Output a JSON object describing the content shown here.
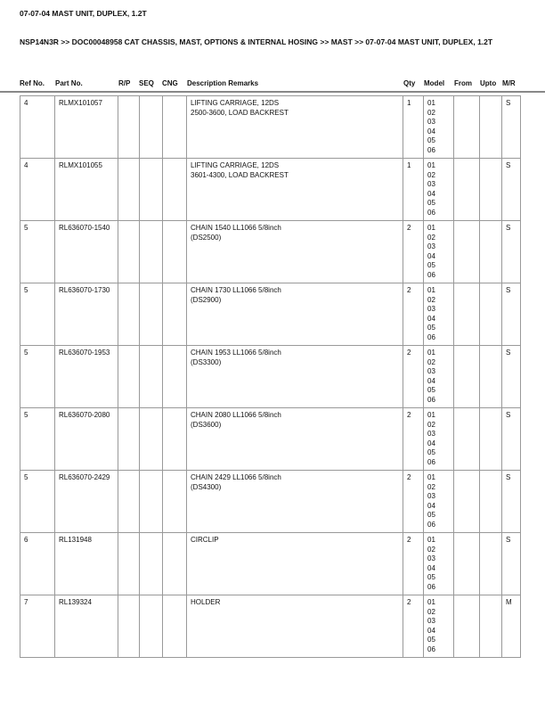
{
  "title": "07-07-04 MAST UNIT, DUPLEX, 1.2T",
  "breadcrumb": "NSP14N3R >> DOC00048958 CAT CHASSIS, MAST, OPTIONS & INTERNAL HOSING >> MAST >> 07-07-04 MAST UNIT, DUPLEX, 1.2T",
  "columns": [
    "Ref No.",
    "Part No.",
    "R/P",
    "SEQ",
    "CNG",
    "Description Remarks",
    "Qty",
    "Model",
    "From",
    "Upto",
    "M/R"
  ],
  "rows": [
    {
      "ref": "4",
      "part": "RLMX101057",
      "rp": "",
      "seq": "",
      "cng": "",
      "desc": [
        "LIFTING CARRIAGE, 12DS",
        "2500-3600, LOAD BACKREST"
      ],
      "qty": "1",
      "models": [
        "01",
        "02",
        "03",
        "04",
        "05",
        "06"
      ],
      "from": "",
      "upto": "",
      "mr": "S"
    },
    {
      "ref": "4",
      "part": "RLMX101055",
      "rp": "",
      "seq": "",
      "cng": "",
      "desc": [
        "LIFTING CARRIAGE, 12DS",
        "3601-4300, LOAD BACKREST"
      ],
      "qty": "1",
      "models": [
        "01",
        "02",
        "03",
        "04",
        "05",
        "06"
      ],
      "from": "",
      "upto": "",
      "mr": "S"
    },
    {
      "ref": "5",
      "part": "RL636070-1540",
      "rp": "",
      "seq": "",
      "cng": "",
      "desc": [
        "CHAIN 1540 LL1066 5/8inch",
        "(DS2500)"
      ],
      "qty": "2",
      "models": [
        "01",
        "02",
        "03",
        "04",
        "05",
        "06"
      ],
      "from": "",
      "upto": "",
      "mr": "S"
    },
    {
      "ref": "5",
      "part": "RL636070-1730",
      "rp": "",
      "seq": "",
      "cng": "",
      "desc": [
        "CHAIN 1730 LL1066 5/8inch",
        "(DS2900)"
      ],
      "qty": "2",
      "models": [
        "01",
        "02",
        "03",
        "04",
        "05",
        "06"
      ],
      "from": "",
      "upto": "",
      "mr": "S"
    },
    {
      "ref": "5",
      "part": "RL636070-1953",
      "rp": "",
      "seq": "",
      "cng": "",
      "desc": [
        "CHAIN 1953 LL1066 5/8inch",
        "(DS3300)"
      ],
      "qty": "2",
      "models": [
        "01",
        "02",
        "03",
        "04",
        "05",
        "06"
      ],
      "from": "",
      "upto": "",
      "mr": "S"
    },
    {
      "ref": "5",
      "part": "RL636070-2080",
      "rp": "",
      "seq": "",
      "cng": "",
      "desc": [
        "CHAIN 2080 LL1066 5/8inch",
        "(DS3600)"
      ],
      "qty": "2",
      "models": [
        "01",
        "02",
        "03",
        "04",
        "05",
        "06"
      ],
      "from": "",
      "upto": "",
      "mr": "S"
    },
    {
      "ref": "5",
      "part": "RL636070-2429",
      "rp": "",
      "seq": "",
      "cng": "",
      "desc": [
        "CHAIN 2429 LL1066 5/8inch",
        "(DS4300)"
      ],
      "qty": "2",
      "models": [
        "01",
        "02",
        "03",
        "04",
        "05",
        "06"
      ],
      "from": "",
      "upto": "",
      "mr": "S"
    },
    {
      "ref": "6",
      "part": "RL131948",
      "rp": "",
      "seq": "",
      "cng": "",
      "desc": [
        "CIRCLIP"
      ],
      "qty": "2",
      "models": [
        "01",
        "02",
        "03",
        "04",
        "05",
        "06"
      ],
      "from": "",
      "upto": "",
      "mr": "S"
    },
    {
      "ref": "7",
      "part": "RL139324",
      "rp": "",
      "seq": "",
      "cng": "",
      "desc": [
        "HOLDER"
      ],
      "qty": "2",
      "models": [
        "01",
        "02",
        "03",
        "04",
        "05",
        "06"
      ],
      "from": "",
      "upto": "",
      "mr": "M"
    }
  ]
}
